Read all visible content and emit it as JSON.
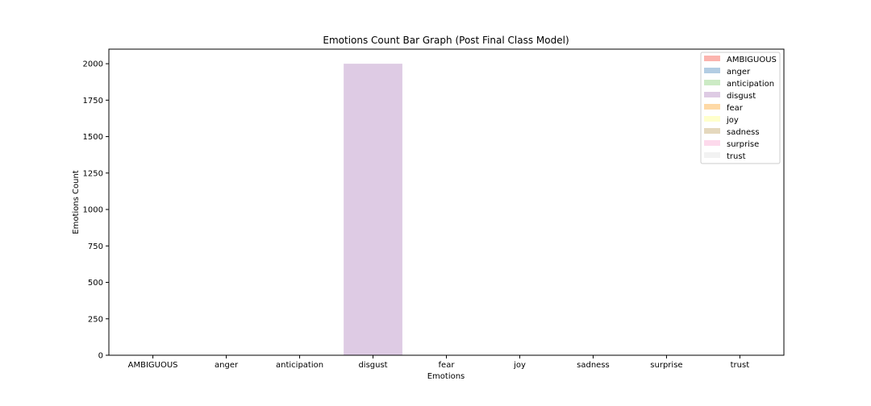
{
  "chart_data": {
    "type": "bar",
    "title": "Emotions Count Bar Graph (Post Final Class Model)",
    "xlabel": "Emotions",
    "ylabel": "Emotions Count",
    "categories": [
      "AMBIGUOUS",
      "anger",
      "anticipation",
      "disgust",
      "fear",
      "joy",
      "sadness",
      "surprise",
      "trust"
    ],
    "values": [
      0,
      0,
      0,
      2000,
      0,
      0,
      0,
      0,
      0
    ],
    "ylim": [
      0,
      2100
    ],
    "yticks": [
      0,
      250,
      500,
      750,
      1000,
      1250,
      1500,
      1750,
      2000
    ],
    "ytick_labels": [
      "0",
      "250",
      "500",
      "750",
      "1000",
      "1250",
      "1500",
      "1750",
      "2000"
    ],
    "legend": {
      "placement": "top-right",
      "entries": [
        "AMBIGUOUS",
        "anger",
        "anticipation",
        "disgust",
        "fear",
        "joy",
        "sadness",
        "surprise",
        "trust"
      ]
    },
    "colors": [
      "#fbb4ae",
      "#b3cde3",
      "#ccebc5",
      "#decbe4",
      "#fed9a6",
      "#ffffcc",
      "#e5d8bd",
      "#fddaec",
      "#f2f2f2"
    ],
    "grid": false
  }
}
